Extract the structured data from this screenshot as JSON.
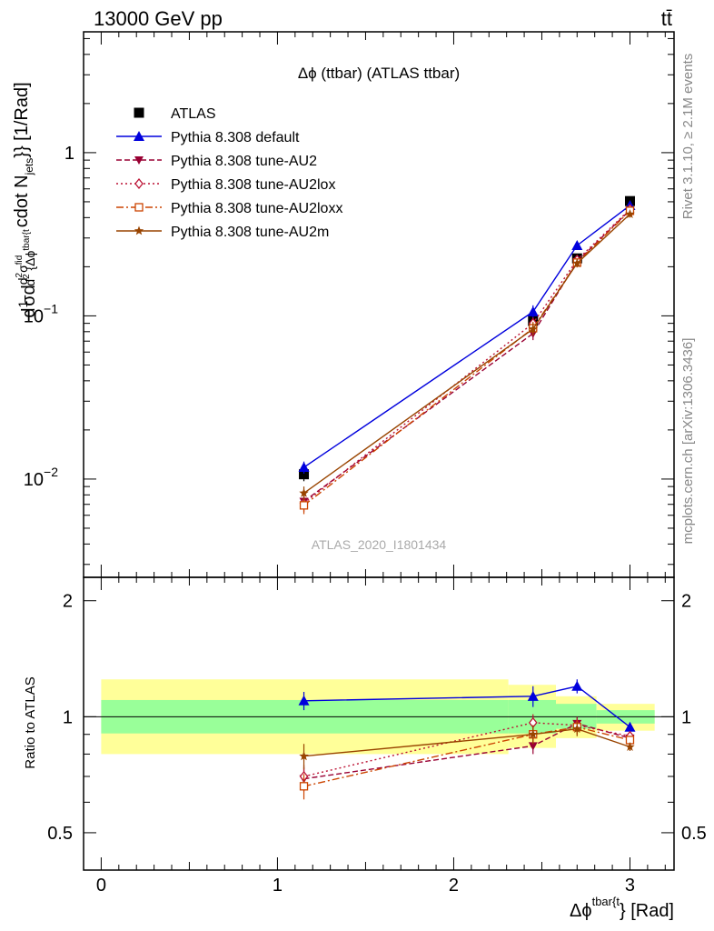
{
  "header": {
    "energy_label": "13000 GeV pp",
    "process_label": "tt̄",
    "title": "Δϕ (ttbar) (ATLAS ttbar)",
    "analysis_id": "ATLAS_2020_I1801434"
  },
  "side_labels": {
    "rivet": "Rivet 3.1.10, ≥ 2.1M events",
    "mcplots": "mcplots.cern.ch [arXiv:1306.3436]"
  },
  "axis_labels": {
    "xlabel": "Δϕ^{tbar{t}} [Rad]",
    "xlabel_main": "Δϕ",
    "xlabel_sup": "tbar{t",
    "xlabel_tail": "} [Rad]",
    "ylabel": "d\\frac{1}{σ}d\\frac{d^2σ^{fid}}{d^2{Δϕ^{tbar{t}}} cdot N_{jets}}} [1/Rad]",
    "ylabel_main_text": "cdot N",
    "ylabel_jets": "jets",
    "ylabel_tail": "}} [1/Rad]",
    "ratio_ylabel": "Ratio to ATLAS"
  },
  "ticks": {
    "main_y": [
      {
        "value": 0.01,
        "base": "10",
        "exp": "−2"
      },
      {
        "value": 0.1,
        "base": "10",
        "exp": "−1"
      },
      {
        "value": 1,
        "base": "1",
        "exp": ""
      }
    ],
    "x": [
      {
        "value": 0,
        "label": "0"
      },
      {
        "value": 1,
        "label": "1"
      },
      {
        "value": 2,
        "label": "2"
      },
      {
        "value": 3,
        "label": "3"
      }
    ],
    "ratio_y": [
      {
        "value": 0.5,
        "label": "0.5"
      },
      {
        "value": 1,
        "label": "1"
      },
      {
        "value": 2,
        "label": "2"
      }
    ]
  },
  "legend": {
    "placement": "top-left",
    "entries": [
      {
        "label": "ATLAS",
        "color": "#000000",
        "marker": "filled-square",
        "line": "none"
      },
      {
        "label": "Pythia 8.308 default",
        "color": "#0000dd",
        "marker": "filled-triangle",
        "line": "solid"
      },
      {
        "label": "Pythia 8.308 tune-AU2",
        "color": "#990033",
        "marker": "filled-down-triangle",
        "line": "dashed"
      },
      {
        "label": "Pythia 8.308 tune-AU2lox",
        "color": "#bb1133",
        "marker": "open-diamond",
        "line": "dotted"
      },
      {
        "label": "Pythia 8.308 tune-AU2loxx",
        "color": "#cc4400",
        "marker": "open-square",
        "line": "dash-dot"
      },
      {
        "label": "Pythia 8.308 tune-AU2m",
        "color": "#994400",
        "marker": "star",
        "line": "solid"
      }
    ]
  },
  "chart_data": [
    {
      "type": "scatter",
      "panel": "main",
      "x_range": [
        -0.1,
        3.25
      ],
      "y_range": [
        0.0025,
        5.5
      ],
      "y_scale": "log",
      "x_bins": [
        [
          0,
          2.31
        ],
        [
          2.31,
          2.58
        ],
        [
          2.58,
          2.81
        ],
        [
          2.81,
          3.14
        ]
      ],
      "x": [
        1.15,
        2.45,
        2.7,
        3.0
      ],
      "series": [
        {
          "name": "ATLAS",
          "values": [
            0.0107,
            0.093,
            0.225,
            0.505
          ],
          "errors": [
            0.001,
            0.008,
            0.015,
            0.02
          ]
        },
        {
          "name": "Pythia 8.308 default",
          "values": [
            0.0118,
            0.106,
            0.27,
            0.475
          ],
          "errors": [
            0.001,
            0.01,
            0.015,
            0.02
          ]
        },
        {
          "name": "Pythia 8.308 tune-AU2",
          "values": [
            0.0073,
            0.078,
            0.215,
            0.445
          ],
          "errors": [
            0.0008,
            0.007,
            0.012,
            0.02
          ]
        },
        {
          "name": "Pythia 8.308 tune-AU2lox",
          "values": [
            0.0071,
            0.09,
            0.22,
            0.45
          ],
          "errors": [
            0.0008,
            0.008,
            0.012,
            0.02
          ]
        },
        {
          "name": "Pythia 8.308 tune-AU2loxx",
          "values": [
            0.0069,
            0.084,
            0.212,
            0.44
          ],
          "errors": [
            0.0008,
            0.008,
            0.012,
            0.02
          ]
        },
        {
          "name": "Pythia 8.308 tune-AU2m",
          "values": [
            0.0082,
            0.083,
            0.21,
            0.42
          ],
          "errors": [
            0.0008,
            0.007,
            0.012,
            0.02
          ]
        }
      ]
    },
    {
      "type": "scatter",
      "panel": "ratio",
      "x_range": [
        -0.1,
        3.25
      ],
      "y_range": [
        0.4,
        2.3
      ],
      "y_scale": "log",
      "reference_line": 1,
      "uncertainty_bands": {
        "x_bins": [
          [
            0,
            2.31
          ],
          [
            2.31,
            2.58
          ],
          [
            2.58,
            2.81
          ],
          [
            2.81,
            3.14
          ]
        ],
        "inner": [
          [
            0.905,
            1.105
          ],
          [
            0.905,
            1.105
          ],
          [
            0.93,
            1.08
          ],
          [
            0.96,
            1.04
          ]
        ],
        "outer": [
          [
            0.8,
            1.25
          ],
          [
            0.83,
            1.21
          ],
          [
            0.88,
            1.13
          ],
          [
            0.92,
            1.08
          ]
        ],
        "inner_color": "#99ff99",
        "outer_color": "#ffff99"
      },
      "x": [
        1.15,
        2.45,
        2.7,
        3.0
      ],
      "series": [
        {
          "name": "Pythia 8.308 default",
          "values": [
            1.1,
            1.13,
            1.2,
            0.94
          ],
          "errors": [
            0.06,
            0.07,
            0.05,
            0.02
          ]
        },
        {
          "name": "Pythia 8.308 tune-AU2",
          "values": [
            0.69,
            0.84,
            0.96,
            0.88
          ],
          "errors": [
            0.05,
            0.04,
            0.04,
            0.02
          ]
        },
        {
          "name": "Pythia 8.308 tune-AU2lox",
          "values": [
            0.7,
            0.965,
            0.95,
            0.89
          ],
          "errors": [
            0.05,
            0.05,
            0.04,
            0.02
          ]
        },
        {
          "name": "Pythia 8.308 tune-AU2loxx",
          "values": [
            0.66,
            0.9,
            0.94,
            0.87
          ],
          "errors": [
            0.05,
            0.05,
            0.04,
            0.02
          ]
        },
        {
          "name": "Pythia 8.308 tune-AU2m",
          "values": [
            0.79,
            0.9,
            0.93,
            0.835
          ],
          "errors": [
            0.06,
            0.05,
            0.04,
            0.02
          ]
        }
      ]
    }
  ]
}
